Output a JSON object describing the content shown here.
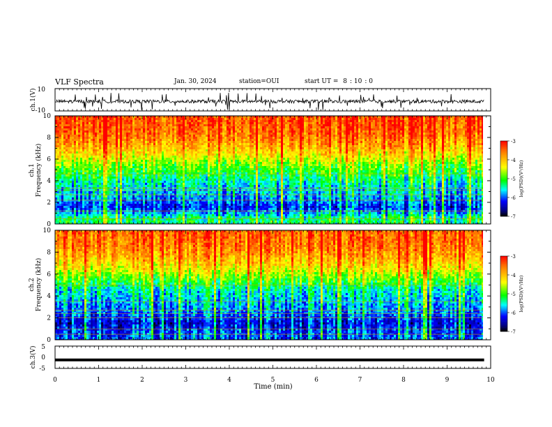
{
  "header": {
    "title": "VLF Spectra",
    "date": "Jan. 30, 2024",
    "station_label": "station=",
    "station_value": "OUI",
    "start_label": "start UT =",
    "start_hour": "8",
    "start_min": "10",
    "start_sec": "0"
  },
  "colorbar": {
    "label": "log(PSD)(V²/Hz)",
    "ticks": [
      "-3",
      "-4",
      "-5",
      "-6",
      "-7"
    ],
    "colors": [
      "#ff0000",
      "#ff7f00",
      "#ffff00",
      "#00ff00",
      "#00ffff",
      "#0000ff",
      "#00007f",
      "#000000"
    ]
  },
  "chart_data": [
    {
      "type": "line",
      "panel": "ch1-waveform",
      "ylabel": "ch.1(V)",
      "ylim": [
        -10,
        10
      ],
      "yticks": [
        "10",
        "-10"
      ],
      "xlim": [
        0,
        10
      ],
      "series": [
        {
          "values_description_free": true,
          "baseline": -1.5,
          "spike_max": 8,
          "spike_min": -8
        }
      ],
      "color": "#000000"
    },
    {
      "type": "heatmap",
      "panel": "ch1-spectrogram",
      "ylabel": "ch.1 Frequency (kHz)",
      "ylim": [
        0,
        10
      ],
      "yticks": [
        "0",
        "2",
        "4",
        "6",
        "8",
        "10"
      ],
      "xlim": [
        0,
        9.85
      ],
      "zlim": [
        -7,
        -3
      ],
      "log_psd_profile": [
        {
          "freq_khz": 0.5,
          "log_psd": -5.3
        },
        {
          "freq_khz": 1.5,
          "log_psd": -6.2
        },
        {
          "freq_khz": 2.5,
          "log_psd": -5.8
        },
        {
          "freq_khz": 3.5,
          "log_psd": -5.6
        },
        {
          "freq_khz": 4.5,
          "log_psd": -5.2
        },
        {
          "freq_khz": 5.5,
          "log_psd": -4.8
        },
        {
          "freq_khz": 6.5,
          "log_psd": -4.2
        },
        {
          "freq_khz": 7.5,
          "log_psd": -3.8
        },
        {
          "freq_khz": 8.5,
          "log_psd": -3.5
        },
        {
          "freq_khz": 9.5,
          "log_psd": -3.4
        }
      ],
      "tone_lines_khz": [
        0.5,
        1.2,
        2.2,
        2.7,
        3.1,
        3.3,
        4.6
      ]
    },
    {
      "type": "heatmap",
      "panel": "ch2-spectrogram",
      "ylabel": "ch.2 Frequency (kHz)",
      "ylim": [
        0,
        10
      ],
      "yticks": [
        "0",
        "2",
        "4",
        "6",
        "8",
        "10"
      ],
      "xlim": [
        0,
        9.85
      ],
      "zlim": [
        -7,
        -3
      ],
      "log_psd_profile": [
        {
          "freq_khz": 0.5,
          "log_psd": -6.0
        },
        {
          "freq_khz": 1.5,
          "log_psd": -6.3
        },
        {
          "freq_khz": 2.5,
          "log_psd": -5.9
        },
        {
          "freq_khz": 3.5,
          "log_psd": -5.7
        },
        {
          "freq_khz": 4.5,
          "log_psd": -5.5
        },
        {
          "freq_khz": 5.5,
          "log_psd": -4.9
        },
        {
          "freq_khz": 6.5,
          "log_psd": -4.3
        },
        {
          "freq_khz": 7.5,
          "log_psd": -3.9
        },
        {
          "freq_khz": 8.5,
          "log_psd": -3.6
        },
        {
          "freq_khz": 9.5,
          "log_psd": -3.5
        }
      ],
      "tone_lines_khz": [
        0.5,
        1.0,
        2.0,
        2.4,
        2.7,
        3.5,
        5.0
      ]
    },
    {
      "type": "line",
      "panel": "ch3-waveform",
      "ylabel": "ch.3(V)",
      "ylim": [
        -5,
        5
      ],
      "yticks": [
        "5",
        "0",
        "-5"
      ],
      "xlim": [
        0,
        10
      ],
      "series": [
        {
          "constant": -1.2,
          "thickness": "heavy"
        }
      ],
      "color": "#000000"
    }
  ],
  "xaxis": {
    "label": "Time (min)",
    "ticks": [
      "0",
      "1",
      "2",
      "3",
      "4",
      "5",
      "6",
      "7",
      "8",
      "9",
      "10"
    ],
    "range": [
      0,
      10
    ],
    "data_end": 9.85
  }
}
